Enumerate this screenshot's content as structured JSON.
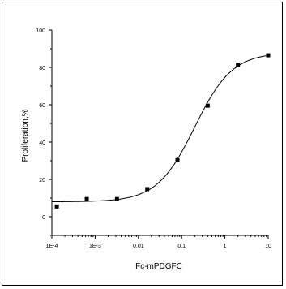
{
  "chart_data": {
    "type": "scatter",
    "xlabel": "Fc-mPDGFC",
    "ylabel": "Proliferation,%",
    "xscale": "log",
    "xlim": [
      0.0001,
      10
    ],
    "ylim": [
      -10,
      100
    ],
    "x_ticks": [
      {
        "value": 0.0001,
        "label": "1E-4"
      },
      {
        "value": 0.001,
        "label": "1E-3"
      },
      {
        "value": 0.01,
        "label": "0.01"
      },
      {
        "value": 0.1,
        "label": "0.1"
      },
      {
        "value": 1,
        "label": "1"
      },
      {
        "value": 10,
        "label": "10"
      }
    ],
    "y_ticks": [
      0,
      20,
      40,
      60,
      80,
      100
    ],
    "points": [
      {
        "x": 0.00013,
        "y": 5.5
      },
      {
        "x": 0.00064,
        "y": 9.5
      },
      {
        "x": 0.0032,
        "y": 9.5
      },
      {
        "x": 0.016,
        "y": 14.8
      },
      {
        "x": 0.08,
        "y": 30.3
      },
      {
        "x": 0.4,
        "y": 59.5
      },
      {
        "x": 2,
        "y": 81.5
      },
      {
        "x": 10,
        "y": 86.5
      }
    ],
    "fit": {
      "type": "sigmoid",
      "bottom": 8,
      "top": 88,
      "ec50": 0.2,
      "hill": 1.0
    },
    "grid": false,
    "legend": "none"
  }
}
